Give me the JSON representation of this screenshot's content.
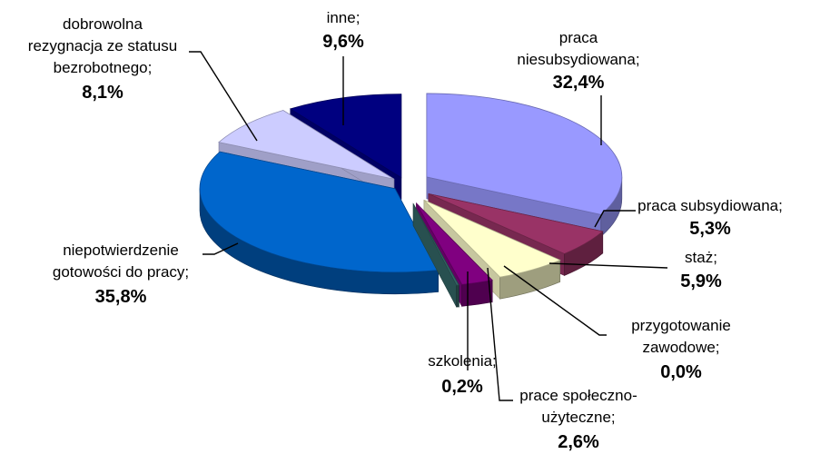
{
  "chart_data": {
    "type": "pie",
    "title": "",
    "unit": "%",
    "slices": [
      {
        "lines": [
          "praca",
          "niesubsydiowana;"
        ],
        "value_label": "32,4%",
        "value": 32.4,
        "color": "#9999ff"
      },
      {
        "lines": [
          "praca subsydiowana;"
        ],
        "value_label": "5,3%",
        "value": 5.3,
        "color": "#993366"
      },
      {
        "lines": [
          "staż;"
        ],
        "value_label": "5,9%",
        "value": 5.9,
        "color": "#ffffcc"
      },
      {
        "lines": [
          "przygotowanie",
          "zawodowe;"
        ],
        "value_label": "0,0%",
        "value": 0.0,
        "color": "#66cc99"
      },
      {
        "lines": [
          "prace społeczno-",
          "użyteczne;"
        ],
        "value_label": "2,6%",
        "value": 2.6,
        "color": "#800080"
      },
      {
        "lines": [
          "szkolenia;"
        ],
        "value_label": "0,2%",
        "value": 0.2,
        "color": "#336666"
      },
      {
        "lines": [
          "niepotwierdzenie",
          "gotowości do pracy;"
        ],
        "value_label": "35,8%",
        "value": 35.8,
        "color": "#0066cc"
      },
      {
        "lines": [
          "dobrowolna",
          "rezygnacja ze statusu",
          "bezrobotnego;"
        ],
        "value_label": "8,1%",
        "value": 8.1,
        "color": "#ccccff"
      },
      {
        "lines": [
          "inne;"
        ],
        "value_label": "9,6%",
        "value": 9.6,
        "color": "#000080"
      }
    ]
  }
}
